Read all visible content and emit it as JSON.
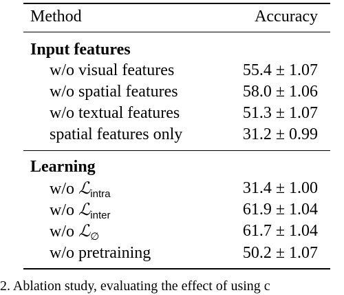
{
  "table": {
    "headers": {
      "method": "Method",
      "accuracy": "Accuracy"
    },
    "sections": [
      {
        "title": "Input features",
        "rows": [
          {
            "method": "w/o visual features",
            "accuracy": "55.4 ± 1.07"
          },
          {
            "method": "w/o spatial features",
            "accuracy": "58.0 ± 1.06"
          },
          {
            "method": "w/o textual features",
            "accuracy": "51.3 ± 1.07"
          },
          {
            "method": "spatial features only",
            "accuracy": "31.2 ± 0.99"
          }
        ]
      },
      {
        "title": "Learning",
        "rows": [
          {
            "prefix": "w/o ",
            "symbol": "ℒ",
            "sub": "intra",
            "accuracy": "31.4 ± 1.00"
          },
          {
            "prefix": "w/o ",
            "symbol": "ℒ",
            "sub": "inter",
            "accuracy": "61.9 ± 1.04"
          },
          {
            "prefix": "w/o ",
            "symbol": "ℒ",
            "sub": "∅",
            "accuracy": "61.7 ± 1.04"
          },
          {
            "method": "w/o pretraining",
            "accuracy": "50.2 ± 1.07"
          }
        ]
      }
    ]
  },
  "caption": "2. Ablation study, evaluating the effect of using c"
}
